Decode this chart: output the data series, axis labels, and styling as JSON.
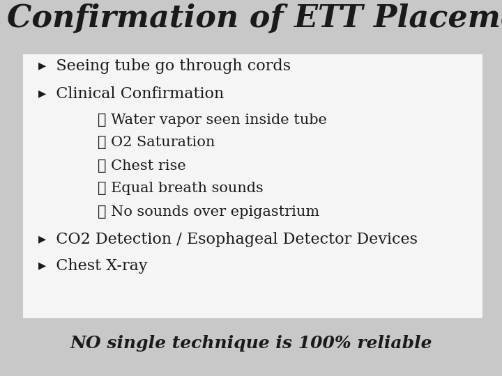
{
  "title": "Confirmation of ETT Placement",
  "title_fontsize": 32,
  "title_style": "italic",
  "title_weight": "bold",
  "title_font": "serif",
  "bg_color": "#c8c8c8",
  "box_color": "#f5f5f5",
  "text_color": "#1a1a1a",
  "bullet_marker": "▸",
  "sub_marker": "❖",
  "bullet_items": [
    "Seeing tube go through cords",
    "Clinical Confirmation"
  ],
  "sub_items": [
    "Water vapor seen inside tube",
    "O2 Saturation",
    "Chest rise",
    "Equal breath sounds",
    "No sounds over epigastrium"
  ],
  "bullet_items2": [
    "CO2 Detection / Esophageal Detector Devices",
    "Chest X-ray"
  ],
  "footer": "NO single technique is 100% reliable",
  "footer_fontsize": 18,
  "main_fontsize": 16,
  "sub_fontsize": 15
}
